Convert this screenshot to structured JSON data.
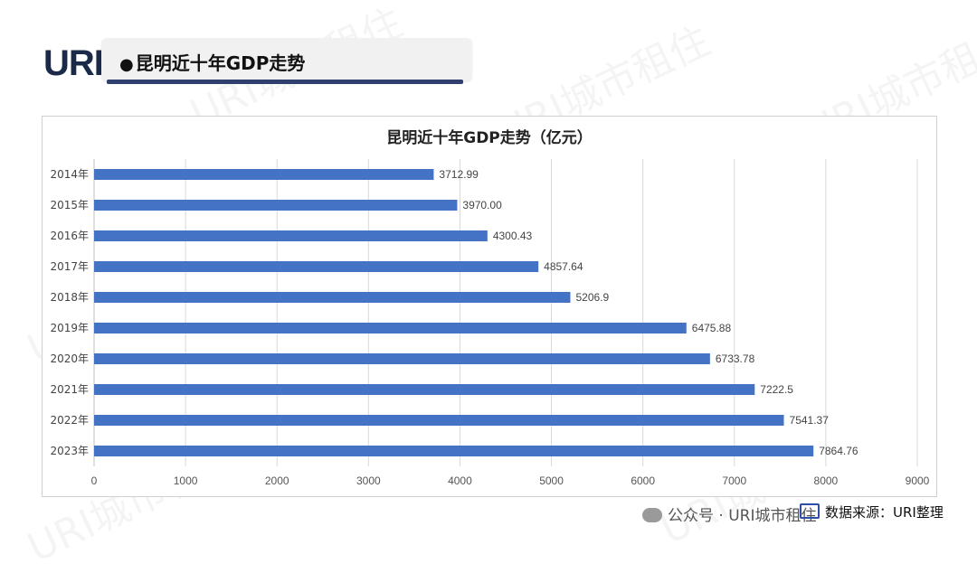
{
  "logo_text": "URI",
  "header": {
    "title": "昆明近十年GDP走势"
  },
  "watermark_text": "URI城市租住",
  "chart_data": {
    "type": "bar",
    "orientation": "horizontal",
    "title": "昆明近十年GDP走势（亿元）",
    "categories": [
      "2014年",
      "2015年",
      "2016年",
      "2017年",
      "2018年",
      "2019年",
      "2020年",
      "2021年",
      "2022年",
      "2023年"
    ],
    "values": [
      3712.99,
      3970.0,
      4300.43,
      4857.64,
      5206.9,
      6475.88,
      6733.78,
      7222.5,
      7541.37,
      7864.76
    ],
    "value_labels": [
      "3712.99",
      "3970.00",
      "4300.43",
      "4857.64",
      "5206.9",
      "6475.88",
      "6733.78",
      "7222.5",
      "7541.37",
      "7864.76"
    ],
    "xlim": [
      0,
      9000
    ],
    "xticks": [
      0,
      1000,
      2000,
      3000,
      4000,
      5000,
      6000,
      7000,
      8000,
      9000
    ],
    "grid": true,
    "legend": "none",
    "bar_color": "#4472c4"
  },
  "footer": {
    "wechat_label": "公众号 · URI城市租住"
  },
  "source": {
    "label": "数据来源：URI整理"
  },
  "icons": {
    "wechat": "wechat-icon",
    "source": "monitor-icon"
  }
}
